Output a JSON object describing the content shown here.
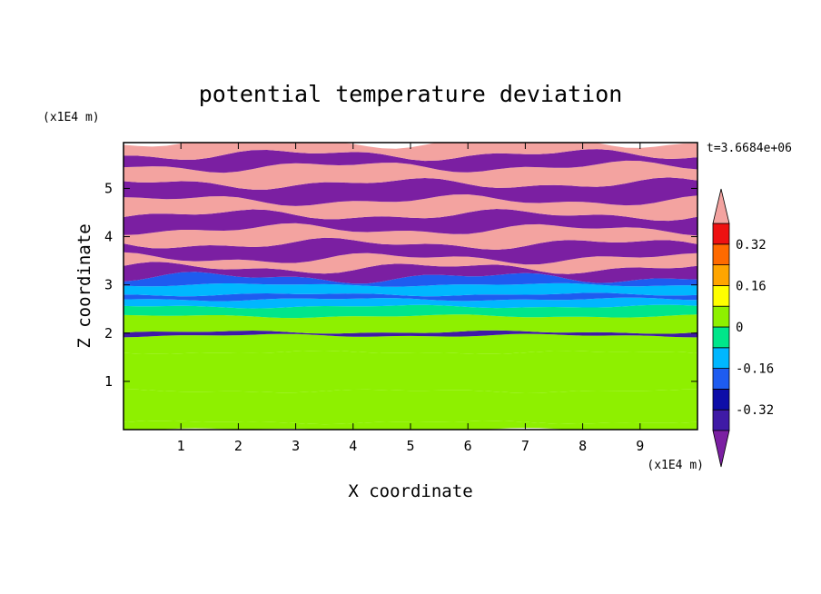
{
  "chart_data": {
    "type": "heatmap",
    "title": "potential temperature deviation",
    "xlabel": "X coordinate",
    "ylabel": "Z coordinate",
    "x_unit": "(x1E4 m)",
    "y_unit": "(x1E4 m)",
    "time_label": "t=3.6684e+06",
    "xlim": [
      0,
      10
    ],
    "ylim": [
      0,
      5.95
    ],
    "x_ticks": [
      "1",
      "2",
      "3",
      "4",
      "5",
      "6",
      "7",
      "8",
      "9"
    ],
    "y_ticks": [
      "1",
      "2",
      "3",
      "4",
      "5"
    ],
    "colorbar": {
      "levels": [
        -0.48,
        -0.4,
        -0.32,
        -0.24,
        -0.16,
        -0.08,
        0,
        0.08,
        0.16,
        0.24,
        0.32,
        0.4,
        0.48
      ],
      "colors": [
        "#7b1fa2",
        "#3f1aa6",
        "#0d0da8",
        "#1e5cf0",
        "#00b7ff",
        "#00e68a",
        "#8ef000",
        "#ffff00",
        "#ffa500",
        "#ff6a00",
        "#ee1111",
        "#f3a3a0"
      ],
      "tick_labels": [
        "0.32",
        "0.16",
        "0",
        "-0.16",
        "-0.32"
      ],
      "extend": "both"
    },
    "grid": false,
    "bands": [
      {
        "z": [
          0.0,
          0.15
        ],
        "value": 0.0
      },
      {
        "z": [
          0.15,
          0.8
        ],
        "value": 0.04
      },
      {
        "z": [
          0.8,
          1.6
        ],
        "value": 0.0
      },
      {
        "z": [
          1.6,
          1.95
        ],
        "value": 0.04
      },
      {
        "z": [
          1.95,
          2.02
        ],
        "value": -0.36
      },
      {
        "z": [
          2.02,
          2.35
        ],
        "value": 0.04
      },
      {
        "z": [
          2.35,
          2.55
        ],
        "value": -0.04
      },
      {
        "z": [
          2.55,
          2.7
        ],
        "value": -0.12
      },
      {
        "z": [
          2.7,
          2.8
        ],
        "value": -0.2
      },
      {
        "z": [
          2.8,
          3.0
        ],
        "value": -0.12
      },
      {
        "z": [
          3.0,
          3.15
        ],
        "value": -0.2
      },
      {
        "z": [
          3.15,
          3.35
        ],
        "value": -0.44
      },
      {
        "z": [
          3.35,
          3.55
        ],
        "value": 0.44
      },
      {
        "z": [
          3.55,
          3.85
        ],
        "value": -0.44
      },
      {
        "z": [
          3.85,
          4.15
        ],
        "value": 0.44
      },
      {
        "z": [
          4.15,
          4.45
        ],
        "value": -0.44
      },
      {
        "z": [
          4.45,
          4.75
        ],
        "value": 0.44
      },
      {
        "z": [
          4.75,
          5.1
        ],
        "value": -0.44
      },
      {
        "z": [
          5.1,
          5.45
        ],
        "value": 0.44
      },
      {
        "z": [
          5.45,
          5.7
        ],
        "value": -0.44
      },
      {
        "z": [
          5.7,
          5.95
        ],
        "value": 0.44
      }
    ]
  }
}
